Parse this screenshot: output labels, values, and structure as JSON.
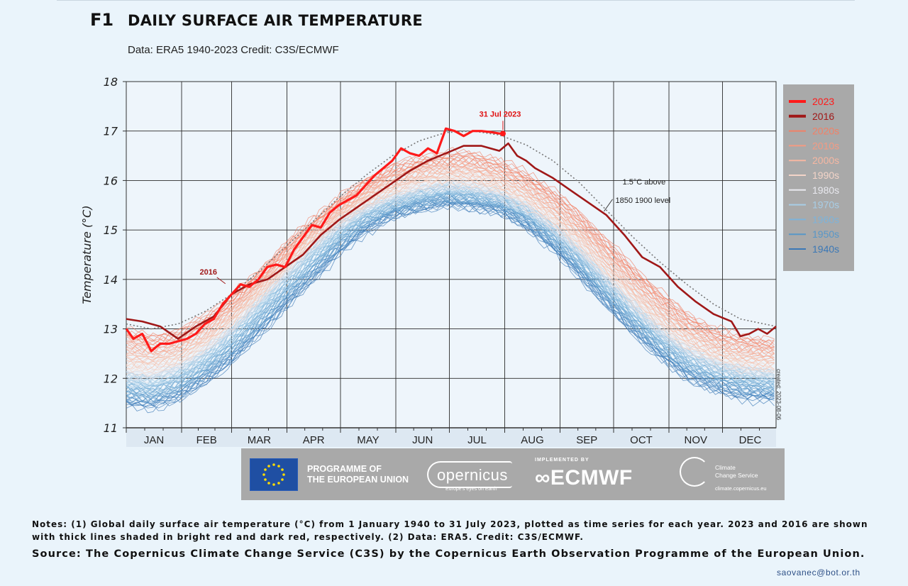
{
  "header": {
    "fig_id": "F1",
    "title": "DAILY SURFACE AIR TEMPERATURE",
    "subtitle": "Data: ERA5 1940-2023  Credit: C3S/ECMWF"
  },
  "chart_data": {
    "type": "line",
    "title": "",
    "xlabel": "",
    "ylabel": "Temperature (°C)",
    "ylim": [
      11,
      18
    ],
    "yticks": [
      11,
      12,
      13,
      14,
      15,
      16,
      17,
      18
    ],
    "xlim": [
      1,
      365
    ],
    "months": [
      "JAN",
      "FEB",
      "MAR",
      "APR",
      "MAY",
      "JUN",
      "JUL",
      "AUG",
      "SEP",
      "OCT",
      "NOV",
      "DEC"
    ],
    "grid": true,
    "legend_position": "right",
    "legend": [
      {
        "label": "2023",
        "color": "#ff1a1a",
        "bold": true
      },
      {
        "label": "2016",
        "color": "#a01818",
        "bold": true
      },
      {
        "label": "2020s",
        "color": "#f28066"
      },
      {
        "label": "2010s",
        "color": "#f59a82"
      },
      {
        "label": "2000s",
        "color": "#f6b7a2"
      },
      {
        "label": "1990s",
        "color": "#f3d4c8"
      },
      {
        "label": "1980s",
        "color": "#e9e9ef"
      },
      {
        "label": "1970s",
        "color": "#a8cde6"
      },
      {
        "label": "1960s",
        "color": "#7db3da"
      },
      {
        "label": "1950s",
        "color": "#5897c8"
      },
      {
        "label": "1940s",
        "color": "#3b78b6"
      }
    ],
    "series": [
      {
        "name": "2023",
        "color": "#ff1a1a",
        "x": [
          1,
          5,
          10,
          15,
          20,
          25,
          30,
          35,
          40,
          45,
          50,
          55,
          60,
          65,
          70,
          75,
          80,
          85,
          90,
          95,
          100,
          105,
          110,
          115,
          120,
          125,
          130,
          135,
          140,
          145,
          150,
          155,
          160,
          165,
          170,
          175,
          180,
          185,
          190,
          195,
          200,
          205,
          210,
          212
        ],
        "y": [
          13.0,
          12.8,
          12.9,
          12.55,
          12.7,
          12.7,
          12.75,
          12.8,
          12.9,
          13.1,
          13.2,
          13.5,
          13.7,
          13.9,
          13.85,
          14.0,
          14.25,
          14.3,
          14.25,
          14.6,
          14.85,
          15.1,
          15.05,
          15.35,
          15.5,
          15.6,
          15.7,
          15.9,
          16.1,
          16.25,
          16.4,
          16.65,
          16.55,
          16.5,
          16.65,
          16.55,
          17.05,
          17.0,
          16.9,
          17.0,
          17.0,
          16.98,
          16.95,
          16.95
        ]
      },
      {
        "name": "2016",
        "color": "#a01818",
        "x": [
          1,
          10,
          20,
          30,
          40,
          50,
          60,
          70,
          80,
          90,
          100,
          110,
          120,
          130,
          140,
          150,
          160,
          170,
          180,
          190,
          200,
          210,
          215,
          220,
          225,
          230,
          240,
          250,
          260,
          270,
          280,
          290,
          300,
          310,
          320,
          330,
          340,
          345,
          350,
          355,
          360,
          365
        ],
        "y": [
          13.2,
          13.15,
          13.05,
          12.8,
          13.05,
          13.25,
          13.7,
          13.9,
          14.0,
          14.25,
          14.5,
          14.9,
          15.2,
          15.45,
          15.7,
          15.95,
          16.2,
          16.4,
          16.55,
          16.7,
          16.7,
          16.6,
          16.75,
          16.5,
          16.4,
          16.25,
          16.05,
          15.8,
          15.55,
          15.3,
          14.9,
          14.45,
          14.25,
          13.85,
          13.55,
          13.3,
          13.15,
          12.85,
          12.9,
          13.0,
          12.9,
          13.05
        ]
      },
      {
        "name": "1.5°C above 1850 1900 level",
        "color": "#777777",
        "dashed": true,
        "x": [
          1,
          15,
          30,
          45,
          60,
          75,
          90,
          105,
          120,
          135,
          150,
          165,
          180,
          195,
          210,
          225,
          240,
          255,
          270,
          285,
          300,
          315,
          330,
          345,
          365
        ],
        "y": [
          13.1,
          13.0,
          13.1,
          13.35,
          13.7,
          14.15,
          14.65,
          15.15,
          15.65,
          16.1,
          16.5,
          16.8,
          16.97,
          17.0,
          16.92,
          16.72,
          16.4,
          15.95,
          15.4,
          14.85,
          14.35,
          13.9,
          13.5,
          13.2,
          13.05
        ]
      }
    ],
    "envelope": {
      "colder_decades": {
        "x": [
          1,
          15,
          30,
          45,
          60,
          75,
          90,
          105,
          120,
          135,
          150,
          165,
          180,
          195,
          210,
          225,
          240,
          255,
          270,
          285,
          300,
          315,
          330,
          345,
          365
        ],
        "low": [
          11.45,
          11.4,
          11.55,
          11.9,
          12.3,
          12.85,
          13.4,
          13.95,
          14.5,
          14.95,
          15.25,
          15.4,
          15.5,
          15.45,
          15.35,
          15.05,
          14.6,
          14.05,
          13.45,
          12.9,
          12.4,
          12.0,
          11.75,
          11.6,
          11.55
        ],
        "high": [
          12.1,
          12.0,
          12.2,
          12.55,
          13.0,
          13.55,
          14.1,
          14.65,
          15.1,
          15.45,
          15.65,
          15.8,
          15.9,
          15.85,
          15.75,
          15.5,
          15.1,
          14.6,
          14.05,
          13.5,
          13.0,
          12.6,
          12.35,
          12.2,
          12.1
        ]
      },
      "warmer_decades": {
        "x": [
          1,
          15,
          30,
          45,
          60,
          75,
          90,
          105,
          120,
          135,
          150,
          165,
          180,
          195,
          210,
          225,
          240,
          255,
          270,
          285,
          300,
          315,
          330,
          345,
          365
        ],
        "low": [
          12.0,
          12.0,
          12.15,
          12.5,
          12.95,
          13.5,
          14.05,
          14.6,
          15.05,
          15.4,
          15.6,
          15.8,
          15.85,
          15.8,
          15.65,
          15.4,
          15.0,
          14.5,
          13.95,
          13.4,
          12.9,
          12.5,
          12.25,
          12.1,
          12.05
        ],
        "high": [
          12.95,
          12.85,
          12.95,
          13.25,
          13.65,
          14.15,
          14.7,
          15.2,
          15.65,
          16.0,
          16.3,
          16.45,
          16.55,
          16.55,
          16.4,
          16.15,
          15.8,
          15.35,
          14.8,
          14.25,
          13.75,
          13.3,
          13.0,
          12.85,
          12.75
        ]
      }
    },
    "annotations": [
      {
        "text": "31 Jul 2023",
        "x": 212,
        "y": 17.35,
        "color": "#e01010"
      },
      {
        "text": "2016",
        "x": 47,
        "y": 14.1,
        "color": "#a01818"
      },
      {
        "text": "1.5°C above",
        "x": 279,
        "y": 15.92
      },
      {
        "text": "1850  1900 level",
        "x": 275,
        "y": 15.55
      }
    ],
    "side_note": "created: 2023-08-06"
  },
  "logos": {
    "eu": "PROGRAMME OF THE EUROPEAN UNION",
    "eu_line1": "PROGRAMME OF",
    "eu_line2": "THE EUROPEAN UNION",
    "copernicus": "opernicus",
    "copernicus_tag": "Europe's eyes on Earth",
    "ecmwf_top": "IMPLEMENTED BY",
    "ecmwf": "ECMWF",
    "c3s_line1": "Climate",
    "c3s_line2": "Change Service",
    "c3s_url": "climate.copernicus.eu"
  },
  "notes": "Notes: (1) Global daily surface air temperature (°C) from 1 January 1940 to 31 July 2023, plotted as time series for each year. 2023 and 2016 are shown with thick lines shaded in bright red and dark red, respectively. (2) Data: ERA5. Credit: C3S/ECMWF.",
  "source": "Source: The Copernicus Climate Change Service (C3S) by the Copernicus Earth Observation Programme of the European Union.",
  "email": "saovanec@bot.or.th"
}
